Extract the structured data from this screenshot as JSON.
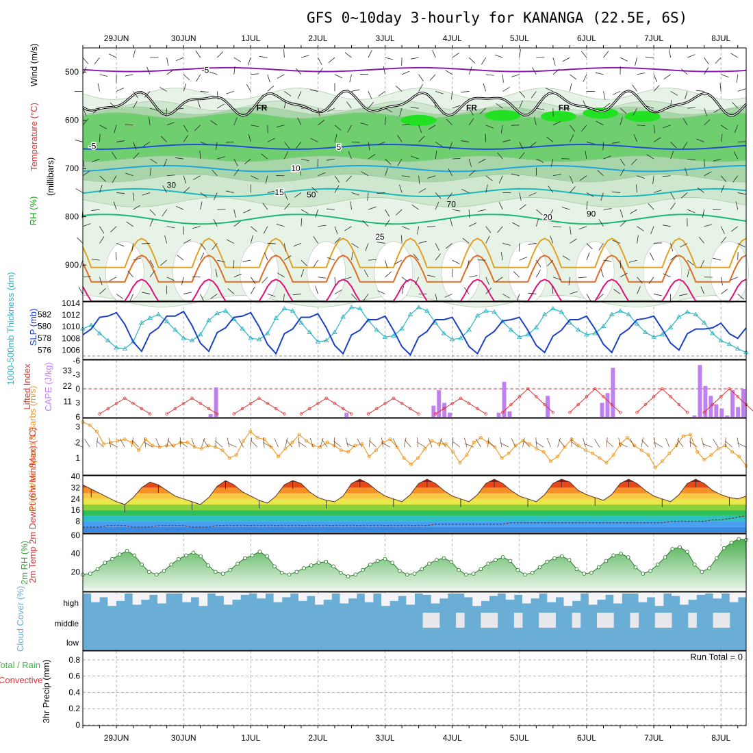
{
  "colors": {
    "grid": "#b4b4b4",
    "frame": "#000000",
    "rh_light": "#e8f3e8",
    "rh_mid": "#cfe6cf",
    "rh_green": "#6fcf6f",
    "rh_bright": "#22e022",
    "temp_purple": "#8a1db0",
    "temp_blue": "#1f4fd6",
    "temp_sky": "#1ea4e0",
    "temp_teal": "#18b8b8",
    "temp_green": "#18b870",
    "temp_orange": "#e0a020",
    "temp_dorange": "#e06a20",
    "temp_magenta": "#e0107c",
    "slp": "#1a3fc4",
    "thick": "#2ab4c4",
    "cape": "#c080f0",
    "li": "#e03030",
    "wind": "#f0961e",
    "rh2m": "#3aa03a",
    "cloud": "#6aaed6",
    "precip_total": "#3ab83a",
    "precip_conv": "#e03030"
  },
  "chart_data": {
    "type": "meteogram",
    "title": "GFS 0~10day 3-hourly for KANANGA (22.5E, 6S)",
    "x": {
      "unit": "hours since 28JUN 12Z",
      "range": [
        0,
        237
      ],
      "step_hours": 3
    },
    "date_ticks": [
      {
        "hour": 12,
        "label": "29JUN"
      },
      {
        "hour": 36,
        "label": "30JUN"
      },
      {
        "hour": 60,
        "label": "1JUL"
      },
      {
        "hour": 84,
        "label": "2JUL"
      },
      {
        "hour": 108,
        "label": "3JUL"
      },
      {
        "hour": 132,
        "label": "4JUL"
      },
      {
        "hour": 156,
        "label": "5JUL"
      },
      {
        "hour": 180,
        "label": "6JUL"
      },
      {
        "hour": 204,
        "label": "7JUL"
      },
      {
        "hour": 228,
        "label": "8JUL"
      }
    ],
    "cross_section": {
      "ylabel_wind": "Wind (m/s)",
      "ylabel_temp": "Temperature (°C)",
      "ylabel_rh": "RH (%)",
      "ylabel_level": "(millibars)",
      "ylim": [
        975,
        450
      ],
      "yticks": [
        500,
        600,
        700,
        800,
        900
      ],
      "temperature_isotherms": [
        {
          "label": "-5",
          "p": 495,
          "color_key": "temp_purple"
        },
        {
          "label": "-5",
          "p": 652,
          "color_key": "temp_blue"
        },
        {
          "label": "5",
          "p": 654,
          "color_key": "temp_blue"
        },
        {
          "label": "10",
          "p": 698,
          "color_key": "temp_sky"
        },
        {
          "label": "15",
          "p": 748,
          "color_key": "temp_teal"
        },
        {
          "label": "20",
          "p": 800,
          "color_key": "temp_green"
        },
        {
          "label": "25",
          "p": 840,
          "color_key": "temp_orange"
        }
      ],
      "freezing_level_label": "FR",
      "freezing_level_p": 585,
      "rh_isolines": [
        "30",
        "50",
        "70",
        "90"
      ]
    },
    "slp_thickness": {
      "ylabel_left": "1000-500mb Thickness (dm)",
      "ylabel_right": "SLP (mb)",
      "thickness_ticks": [
        576,
        578,
        580,
        582
      ],
      "slp_ticks": [
        1006,
        1008,
        1010,
        1012,
        1014
      ],
      "slp": [
        1008.6,
        1009.6,
        1011.6,
        1011.8,
        1012.4,
        1010.4,
        1007.4,
        1005.8,
        1008.8,
        1009.8,
        1011.8,
        1011.8,
        1012.6,
        1010.2,
        1007.2,
        1005.8,
        1009.0,
        1009.8,
        1011.6,
        1011.8,
        1012.4,
        1010.0,
        1007.0,
        1005.4,
        1008.8,
        1009.6,
        1011.6,
        1011.6,
        1012.2,
        1009.8,
        1006.8,
        1005.4,
        1008.6,
        1009.4,
        1011.2,
        1011.2,
        1011.8,
        1009.4,
        1006.6,
        1005.2,
        1008.2,
        1009.2,
        1011.2,
        1011.2,
        1011.6,
        1009.2,
        1006.6,
        1005.4,
        1008.2,
        1009.2,
        1011.0,
        1011.2,
        1011.6,
        1009.4,
        1006.8,
        1005.6,
        1008.4,
        1009.4,
        1011.2,
        1011.2,
        1011.8,
        1009.6,
        1007.0,
        1005.6,
        1008.6,
        1009.6,
        1011.2,
        1011.4,
        1011.8,
        1009.6,
        1007.2,
        1006.0,
        1008.8,
        1009.6,
        1009.6,
        1009.8,
        1010.6,
        1008.8,
        1008.0,
        1009.8
      ],
      "thickness": [
        579.6,
        580.2,
        578.8,
        577.6,
        576.4,
        576.2,
        577.4,
        580.6,
        581.4,
        582.0,
        580.8,
        579.4,
        578.0,
        577.6,
        578.6,
        581.0,
        582.2,
        582.6,
        581.2,
        579.6,
        578.0,
        577.8,
        578.8,
        581.4,
        583.0,
        582.6,
        580.6,
        579.0,
        577.4,
        577.6,
        579.0,
        581.6,
        583.2,
        583.0,
        581.0,
        579.4,
        578.2,
        578.4,
        579.6,
        582.0,
        583.2,
        582.6,
        580.6,
        578.8,
        577.8,
        578.0,
        579.4,
        581.8,
        582.6,
        582.4,
        580.8,
        579.4,
        578.2,
        578.6,
        579.8,
        582.0,
        583.0,
        582.4,
        580.6,
        579.4,
        578.6,
        578.8,
        580.0,
        582.0,
        582.6,
        582.0,
        580.4,
        579.0,
        578.2,
        578.6,
        579.8,
        581.6,
        582.4,
        582.0,
        580.6,
        578.8,
        577.6,
        577.0,
        576.2,
        575.6
      ]
    },
    "stability": {
      "ylabel_left": "Lifted Index",
      "ylabel_right": "CAPE (J/kg)",
      "li_ticks": [
        "-6",
        "-3",
        "0",
        "3",
        "6"
      ],
      "cape_ticks": [
        11,
        22,
        33
      ],
      "cape": [
        0,
        0,
        0,
        0,
        0,
        0,
        0,
        0,
        0,
        0,
        0,
        0,
        0,
        0,
        0,
        0,
        0,
        0,
        0,
        0,
        0,
        0,
        0,
        2,
        21,
        0,
        0,
        0,
        0,
        0,
        0,
        0,
        0,
        0,
        0,
        0,
        0,
        0,
        0,
        0,
        0,
        0,
        0,
        0,
        0,
        0,
        0,
        0,
        3,
        0,
        0,
        0,
        0,
        0,
        0,
        0,
        0,
        0,
        0,
        0,
        0,
        0,
        0,
        0,
        8,
        19,
        10,
        3,
        0,
        0,
        0,
        0,
        0,
        0,
        0,
        0,
        3,
        25,
        4,
        0,
        0,
        0,
        0,
        0,
        0,
        15,
        0,
        0,
        0,
        0,
        0,
        0,
        0,
        0,
        0,
        10,
        17,
        35,
        0,
        0,
        0,
        0,
        0,
        0,
        0,
        0,
        0,
        0,
        0,
        0,
        0,
        0,
        1,
        37,
        22,
        15,
        9,
        6,
        1,
        19,
        7,
        20
      ]
    },
    "wind10m": {
      "ylabel": "10m Wind Speed & Barbs (m/s)",
      "ylim": [
        0,
        3.5
      ],
      "yticks": [
        1,
        2,
        3
      ],
      "values": [
        3.3,
        3.1,
        2.7,
        1.9,
        2.0,
        2.1,
        2.2,
        2.0,
        1.5,
        2.2,
        1.8,
        1.7,
        1.8,
        1.8,
        2.0,
        2.0,
        1.7,
        1.6,
        1.8,
        1.7,
        1.5,
        1.0,
        1.2,
        2.1,
        2.7,
        2.3,
        2.2,
        1.7,
        1.1,
        1.6,
        2.0,
        2.5,
        2.1,
        1.8,
        1.7,
        2.0,
        1.8,
        1.5,
        1.4,
        1.8,
        1.9,
        1.1,
        1.5,
        2.0,
        2.2,
        1.7,
        1.0,
        0.6,
        1.0,
        1.6,
        2.1,
        1.9,
        1.9,
        1.4,
        0.7,
        1.2,
        2.0,
        2.3,
        2.0,
        1.7,
        1.0,
        1.3,
        1.8,
        2.1,
        1.9,
        1.6,
        1.4,
        0.8,
        1.1,
        1.7,
        2.2,
        1.8,
        1.5,
        1.3,
        1.0,
        0.7,
        1.2,
        1.9,
        2.3,
        1.8,
        1.5,
        1.2,
        0.4,
        0.8,
        1.3,
        1.8,
        2.4,
        2.5,
        1.4,
        0.9,
        1.2,
        1.6,
        1.8,
        1.4,
        1.1,
        0.5
      ]
    },
    "temp2m": {
      "ylabel": "2m Temp 2m DewPt (6hr Min/Max) (°C)",
      "ylim": [
        0,
        40
      ],
      "yticks": [
        8,
        16,
        24,
        32,
        40
      ],
      "temp": [
        34,
        31,
        28,
        25,
        22,
        20,
        25,
        32,
        36,
        34,
        30,
        26,
        24,
        22,
        20,
        25,
        33,
        37,
        34,
        29,
        26,
        23,
        21,
        26,
        34,
        37,
        35,
        29,
        25,
        23,
        22,
        26,
        35,
        38,
        35,
        30,
        26,
        24,
        22,
        27,
        35,
        38,
        35,
        30,
        26,
        24,
        22,
        27,
        35,
        38,
        35,
        30,
        26,
        24,
        22,
        27,
        35,
        38,
        36,
        30,
        27,
        25,
        23,
        27,
        35,
        38,
        35,
        30,
        26,
        24,
        22,
        27,
        35,
        38,
        35,
        30,
        27,
        25,
        24,
        26
      ],
      "dewpt": [
        4,
        4,
        4,
        5,
        5,
        5,
        4,
        4,
        4,
        5,
        5,
        5,
        5,
        4,
        4,
        4,
        5,
        5,
        5,
        5,
        5,
        5,
        5,
        5,
        5,
        5,
        5,
        5,
        5,
        5,
        5,
        5,
        5,
        5,
        5,
        5,
        5,
        5,
        5,
        5,
        5,
        5,
        6,
        6,
        6,
        6,
        6,
        6,
        6,
        6,
        6,
        7,
        7,
        7,
        7,
        7,
        7,
        7,
        7,
        7,
        7,
        7,
        7,
        7,
        7,
        7,
        7,
        7,
        7,
        7,
        8,
        8,
        8,
        8,
        8,
        9,
        9,
        10,
        11,
        12
      ]
    },
    "rh2m": {
      "ylabel": "2m RH (%)",
      "ylim": [
        0,
        60
      ],
      "yticks": [
        20,
        40,
        60
      ],
      "values": [
        17,
        18,
        23,
        30,
        34,
        39,
        43,
        38,
        28,
        20,
        17,
        21,
        28,
        34,
        38,
        41,
        37,
        27,
        20,
        18,
        22,
        29,
        35,
        38,
        42,
        37,
        26,
        19,
        17,
        20,
        24,
        27,
        30,
        31,
        26,
        19,
        15,
        17,
        22,
        28,
        32,
        34,
        30,
        21,
        17,
        18,
        23,
        29,
        33,
        35,
        31,
        22,
        17,
        18,
        23,
        29,
        33,
        36,
        32,
        22,
        17,
        19,
        25,
        31,
        35,
        37,
        33,
        23,
        18,
        19,
        25,
        32,
        38,
        40,
        36,
        25,
        18,
        21,
        28,
        36,
        45,
        47,
        42,
        28,
        20,
        24,
        35,
        46,
        52,
        56,
        55
      ]
    },
    "cloud": {
      "ylabel": "Cloud Cover (%)",
      "levels": [
        "high",
        "middle",
        "low"
      ]
    },
    "precip": {
      "ylabel": "3hr Precip (mm)",
      "legend_total": "Total / Rain",
      "legend_convective": "Convective",
      "run_total_label": "Run Total = 0",
      "ylim": [
        0,
        0.9
      ],
      "yticks": [
        "0",
        "0.2",
        "0.4",
        "0.6",
        "0.8"
      ],
      "values": []
    }
  }
}
